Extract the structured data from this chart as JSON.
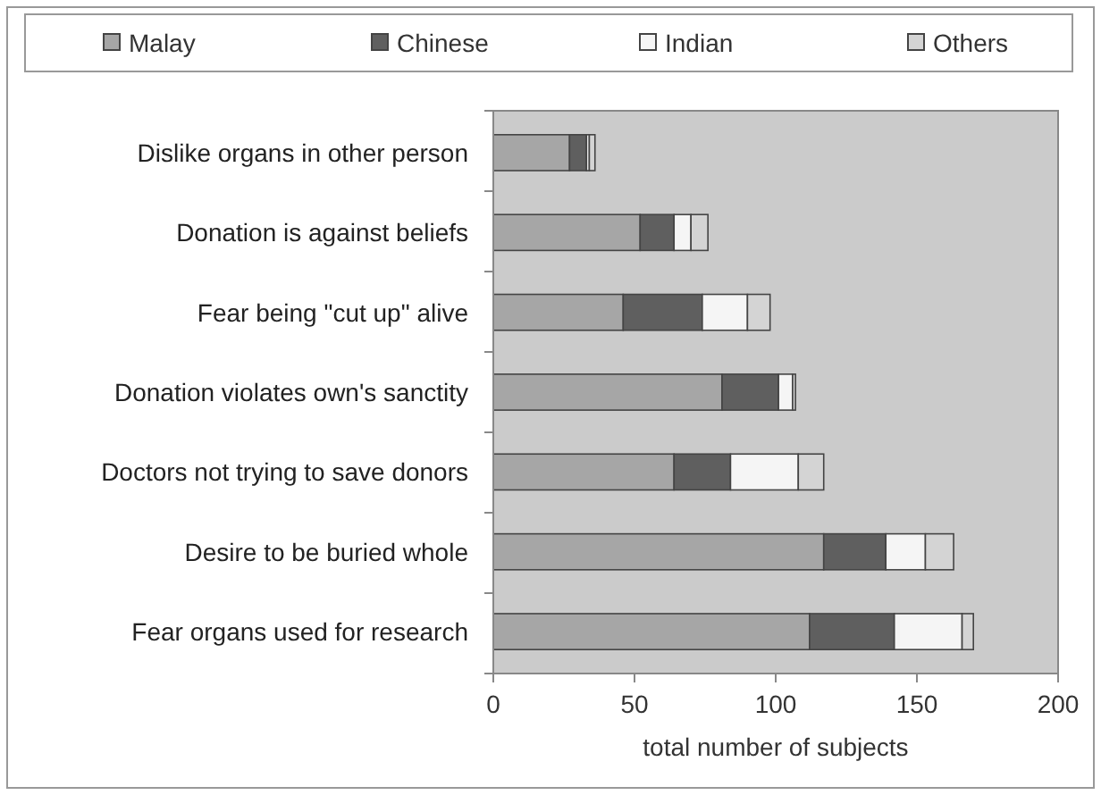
{
  "chart_data": {
    "type": "bar",
    "orientation": "horizontal",
    "stacked": true,
    "xlabel": "total number of subjects",
    "categories": [
      "Dislike organs in other person",
      "Donation is against beliefs",
      "Fear being \"cut up\" alive",
      "Donation violates own's sanctity",
      "Doctors not trying to save donors",
      "Desire to be buried whole",
      "Fear organs used for research"
    ],
    "series": [
      {
        "name": "Malay",
        "color": "#a6a6a6",
        "values": [
          27,
          52,
          46,
          81,
          64,
          117,
          112
        ]
      },
      {
        "name": "Chinese",
        "color": "#5f5f5f",
        "values": [
          6,
          12,
          28,
          20,
          20,
          22,
          30
        ]
      },
      {
        "name": "Indian",
        "color": "#f5f5f5",
        "values": [
          1,
          6,
          16,
          5,
          24,
          14,
          24
        ]
      },
      {
        "name": "Others",
        "color": "#d4d4d4",
        "values": [
          2,
          6,
          8,
          1,
          9,
          10,
          4
        ]
      }
    ],
    "xlim": [
      0,
      200
    ],
    "xticks": [
      0,
      50,
      100,
      150,
      200
    ],
    "grid": false,
    "legend": "top"
  }
}
